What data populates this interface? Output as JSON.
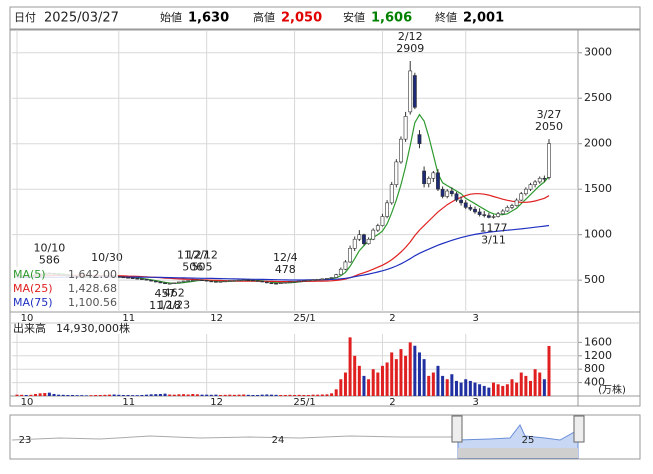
{
  "chart_data": {
    "type": "candlestick",
    "date_label": "日付",
    "date": "2025/03/27",
    "quotes": [
      {
        "label": "始値",
        "value_label": "1,630",
        "color": "#000000"
      },
      {
        "label": "高値",
        "value_label": "2,050",
        "color": "#e00000"
      },
      {
        "label": "安値",
        "value_label": "1,606",
        "color": "#008000"
      },
      {
        "label": "終値",
        "value_label": "2,001",
        "color": "#000000"
      }
    ],
    "categories": [
      "10",
      null,
      null,
      null,
      null,
      null,
      null,
      null,
      null,
      null,
      null,
      null,
      null,
      null,
      null,
      null,
      null,
      null,
      null,
      null,
      null,
      null,
      "11",
      null,
      null,
      null,
      null,
      null,
      null,
      null,
      null,
      null,
      null,
      null,
      null,
      null,
      null,
      null,
      null,
      null,
      null,
      "12",
      null,
      null,
      null,
      null,
      null,
      null,
      null,
      null,
      null,
      null,
      null,
      null,
      null,
      null,
      null,
      null,
      null,
      null,
      "25/1",
      null,
      null,
      null,
      null,
      null,
      null,
      null,
      null,
      null,
      null,
      null,
      null,
      null,
      null,
      null,
      null,
      null,
      null,
      "2",
      null,
      null,
      null,
      null,
      null,
      null,
      null,
      null,
      null,
      null,
      null,
      null,
      null,
      null,
      null,
      null,
      null,
      "3",
      null,
      null,
      null,
      null,
      null,
      null,
      null,
      null,
      null,
      null,
      null,
      null,
      null,
      null,
      null,
      null,
      null,
      null
    ],
    "ohlc": [
      [
        540,
        548,
        535,
        545
      ],
      [
        545,
        553,
        540,
        550
      ],
      [
        550,
        555,
        543,
        548
      ],
      [
        548,
        556,
        544,
        552
      ],
      [
        552,
        565,
        550,
        560
      ],
      [
        560,
        575,
        556,
        570
      ],
      [
        570,
        582,
        565,
        578
      ],
      [
        578,
        586,
        568,
        575
      ],
      [
        575,
        578,
        560,
        565
      ],
      [
        565,
        568,
        555,
        560
      ],
      [
        560,
        563,
        550,
        555
      ],
      [
        555,
        558,
        546,
        550
      ],
      [
        550,
        553,
        541,
        545
      ],
      [
        545,
        548,
        536,
        540
      ],
      [
        540,
        544,
        533,
        538
      ],
      [
        538,
        541,
        530,
        535
      ],
      [
        535,
        543,
        532,
        540
      ],
      [
        540,
        548,
        537,
        545
      ],
      [
        545,
        551,
        541,
        548
      ],
      [
        548,
        553,
        543,
        550
      ],
      [
        550,
        556,
        545,
        552
      ],
      [
        552,
        554,
        536,
        540
      ],
      [
        540,
        542,
        531,
        535
      ],
      [
        535,
        538,
        527,
        530
      ],
      [
        530,
        533,
        522,
        525
      ],
      [
        525,
        528,
        517,
        520
      ],
      [
        520,
        523,
        512,
        515
      ],
      [
        515,
        518,
        506,
        510
      ],
      [
        510,
        512,
        497,
        500
      ],
      [
        500,
        503,
        487,
        490
      ],
      [
        490,
        493,
        477,
        480
      ],
      [
        480,
        483,
        467,
        470
      ],
      [
        470,
        472,
        457,
        462
      ],
      [
        462,
        468,
        458,
        465
      ],
      [
        465,
        473,
        462,
        470
      ],
      [
        470,
        483,
        468,
        480
      ],
      [
        480,
        493,
        477,
        490
      ],
      [
        490,
        498,
        486,
        495
      ],
      [
        495,
        506,
        492,
        500
      ],
      [
        500,
        504,
        496,
        503
      ],
      [
        503,
        505,
        494,
        498
      ],
      [
        498,
        500,
        487,
        490
      ],
      [
        490,
        492,
        482,
        485
      ],
      [
        485,
        487,
        478,
        480
      ],
      [
        480,
        488,
        479,
        485
      ],
      [
        485,
        493,
        483,
        490
      ],
      [
        490,
        497,
        487,
        495
      ],
      [
        495,
        501,
        492,
        498
      ],
      [
        498,
        503,
        495,
        500
      ],
      [
        500,
        505,
        498,
        503
      ],
      [
        503,
        504,
        496,
        500
      ],
      [
        500,
        502,
        492,
        495
      ],
      [
        495,
        497,
        487,
        490
      ],
      [
        490,
        492,
        477,
        480
      ],
      [
        480,
        482,
        467,
        470
      ],
      [
        470,
        472,
        463,
        465
      ],
      [
        465,
        468,
        462,
        463
      ],
      [
        463,
        473,
        464,
        470
      ],
      [
        470,
        478,
        467,
        475
      ],
      [
        475,
        483,
        472,
        480
      ],
      [
        480,
        488,
        478,
        485
      ],
      [
        485,
        493,
        482,
        490
      ],
      [
        490,
        498,
        487,
        495
      ],
      [
        495,
        503,
        491,
        500
      ],
      [
        500,
        508,
        497,
        505
      ],
      [
        505,
        513,
        502,
        510
      ],
      [
        510,
        518,
        506,
        515
      ],
      [
        515,
        524,
        511,
        520
      ],
      [
        520,
        535,
        518,
        530
      ],
      [
        530,
        570,
        528,
        560
      ],
      [
        560,
        640,
        555,
        620
      ],
      [
        620,
        720,
        610,
        700
      ],
      [
        700,
        880,
        690,
        850
      ],
      [
        850,
        980,
        820,
        950
      ],
      [
        950,
        1050,
        930,
        1000
      ],
      [
        1000,
        1010,
        880,
        900
      ],
      [
        900,
        970,
        890,
        950
      ],
      [
        950,
        1070,
        940,
        1050
      ],
      [
        1050,
        1120,
        1030,
        1100
      ],
      [
        1100,
        1230,
        1090,
        1200
      ],
      [
        1200,
        1380,
        1180,
        1350
      ],
      [
        1350,
        1580,
        1330,
        1550
      ],
      [
        1550,
        1830,
        1520,
        1800
      ],
      [
        1800,
        2080,
        1780,
        2050
      ],
      [
        2050,
        2350,
        2020,
        2300
      ],
      [
        2350,
        2909,
        2320,
        2800
      ],
      [
        2750,
        2780,
        2380,
        2400
      ],
      [
        2100,
        2150,
        1950,
        2000
      ],
      [
        1700,
        1750,
        1520,
        1560
      ],
      [
        1560,
        1640,
        1520,
        1620
      ],
      [
        1620,
        1700,
        1580,
        1680
      ],
      [
        1680,
        1720,
        1480,
        1500
      ],
      [
        1500,
        1530,
        1400,
        1420
      ],
      [
        1420,
        1500,
        1400,
        1480
      ],
      [
        1480,
        1520,
        1420,
        1450
      ],
      [
        1450,
        1470,
        1360,
        1380
      ],
      [
        1380,
        1420,
        1320,
        1350
      ],
      [
        1350,
        1380,
        1280,
        1300
      ],
      [
        1300,
        1330,
        1260,
        1280
      ],
      [
        1280,
        1310,
        1230,
        1250
      ],
      [
        1250,
        1290,
        1200,
        1220
      ],
      [
        1220,
        1260,
        1190,
        1210
      ],
      [
        1210,
        1240,
        1180,
        1190
      ],
      [
        1190,
        1220,
        1177,
        1200
      ],
      [
        1200,
        1250,
        1190,
        1230
      ],
      [
        1230,
        1280,
        1220,
        1260
      ],
      [
        1260,
        1320,
        1250,
        1300
      ],
      [
        1300,
        1340,
        1280,
        1320
      ],
      [
        1320,
        1400,
        1310,
        1380
      ],
      [
        1380,
        1470,
        1370,
        1450
      ],
      [
        1450,
        1520,
        1430,
        1500
      ],
      [
        1500,
        1570,
        1480,
        1550
      ],
      [
        1550,
        1600,
        1520,
        1580
      ],
      [
        1580,
        1640,
        1560,
        1620
      ],
      [
        1620,
        1650,
        1580,
        1610
      ],
      [
        1630,
        2050,
        1606,
        2001
      ]
    ],
    "up_color": "#ffffff",
    "down_color": "#1c2a78",
    "wick_color": "#333333",
    "ylim": [
      150,
      3250
    ],
    "yticks": [
      500,
      1000,
      1500,
      2000,
      2500,
      3000
    ],
    "grid": true,
    "series": [
      {
        "name": "MA(5)",
        "color": "#2e9a2e",
        "value_label": "1,642.00",
        "values": [
          540,
          543,
          545,
          547,
          551,
          556,
          562,
          568,
          572,
          573,
          569,
          561,
          555,
          550,
          545,
          540,
          539,
          540,
          542,
          546,
          549,
          547,
          545,
          541,
          536,
          530,
          525,
          520,
          512,
          503,
          495,
          485,
          476,
          469,
          465,
          468,
          473,
          480,
          486,
          494,
          499,
          497,
          494,
          491,
          487,
          486,
          487,
          490,
          494,
          497,
          499,
          499,
          497,
          493,
          487,
          480,
          473,
          471,
          471,
          471,
          475,
          481,
          486,
          491,
          495,
          500,
          505,
          510,
          516,
          527,
          549,
          586,
          652,
          736,
          824,
          880,
          930,
          970,
          1000,
          1040,
          1120,
          1240,
          1380,
          1550,
          1750,
          1980,
          2230,
          2320,
          2250,
          2080,
          1880,
          1670,
          1570,
          1540,
          1510,
          1480,
          1450,
          1400,
          1370,
          1340,
          1310,
          1280,
          1250,
          1230,
          1220,
          1220,
          1230,
          1260,
          1290,
          1340,
          1390,
          1440,
          1490,
          1540,
          1580,
          1642
        ]
      },
      {
        "name": "MA(25)",
        "color": "#e02020",
        "value_label": "1,428.68",
        "values": [
          540,
          541,
          542,
          543,
          544,
          546,
          548,
          550,
          551,
          552,
          553,
          553,
          553,
          553,
          552,
          552,
          551,
          551,
          551,
          551,
          551,
          550,
          549,
          547,
          545,
          543,
          541,
          539,
          536,
          533,
          530,
          527,
          523,
          520,
          517,
          514,
          512,
          510,
          508,
          506,
          504,
          502,
          500,
          498,
          496,
          494,
          492,
          491,
          490,
          489,
          489,
          489,
          489,
          488,
          487,
          486,
          485,
          484,
          484,
          484,
          484,
          485,
          486,
          487,
          488,
          489,
          490,
          491,
          493,
          497,
          503,
          512,
          527,
          545,
          565,
          582,
          600,
          620,
          642,
          665,
          692,
          725,
          765,
          810,
          860,
          920,
          990,
          1050,
          1100,
          1150,
          1200,
          1250,
          1290,
          1330,
          1360,
          1390,
          1410,
          1430,
          1445,
          1450,
          1450,
          1445,
          1435,
          1420,
          1405,
          1390,
          1378,
          1368,
          1360,
          1356,
          1356,
          1360,
          1370,
          1385,
          1400,
          1428.68
        ]
      },
      {
        "name": "MA(75)",
        "color": "#2030c0",
        "value_label": "1,100.56",
        "values": [
          528,
          528,
          529,
          529,
          530,
          530,
          531,
          531,
          532,
          532,
          533,
          533,
          533,
          534,
          534,
          534,
          535,
          535,
          535,
          535,
          535,
          535,
          535,
          535,
          534,
          534,
          534,
          533,
          533,
          532,
          531,
          530,
          529,
          528,
          527,
          526,
          525,
          524,
          523,
          522,
          521,
          520,
          519,
          518,
          517,
          516,
          515,
          514,
          513,
          512,
          511,
          510,
          509,
          508,
          507,
          506,
          505,
          504,
          503,
          502,
          502,
          502,
          502,
          503,
          503,
          504,
          505,
          506,
          508,
          511,
          515,
          520,
          528,
          538,
          548,
          557,
          567,
          578,
          590,
          603,
          618,
          636,
          656,
          680,
          706,
          736,
          768,
          795,
          818,
          840,
          862,
          884,
          903,
          921,
          938,
          954,
          968,
          981,
          993,
          1003,
          1012,
          1020,
          1027,
          1033,
          1039,
          1044,
          1049,
          1054,
          1059,
          1064,
          1070,
          1076,
          1082,
          1088,
          1094,
          1100.56
        ]
      }
    ],
    "annotations": [
      {
        "date": "10/10",
        "value": 586
      },
      {
        "date": "10/30"
      },
      {
        "date": "11/18",
        "value": 457
      },
      {
        "date": "11/27",
        "value": 506
      },
      {
        "date": "12/4",
        "value": 478
      },
      {
        "date": "12/12",
        "value": 505
      },
      {
        "date": "12/23",
        "value": 462
      },
      {
        "date": "2/12",
        "value": 2909
      },
      {
        "date": "3/11",
        "value": 1177
      },
      {
        "date": "3/27",
        "value": 2050
      }
    ],
    "volume": {
      "title": "出来高",
      "last_label": "14,930,000株",
      "unit": "(万株)",
      "up_color": "#e02020",
      "down_color": "#2030a0",
      "ylim": [
        0,
        1850
      ],
      "yticks": [
        400,
        800,
        1200,
        1600
      ],
      "values": [
        40,
        35,
        30,
        35,
        60,
        80,
        90,
        100,
        60,
        40,
        35,
        30,
        30,
        25,
        25,
        20,
        25,
        30,
        30,
        35,
        40,
        45,
        35,
        30,
        30,
        25,
        25,
        30,
        40,
        50,
        55,
        60,
        70,
        45,
        40,
        50,
        55,
        45,
        60,
        50,
        40,
        40,
        35,
        40,
        30,
        35,
        40,
        35,
        40,
        45,
        35,
        30,
        30,
        40,
        45,
        40,
        35,
        30,
        30,
        35,
        30,
        35,
        30,
        30,
        40,
        40,
        45,
        50,
        80,
        200,
        500,
        700,
        1750,
        1200,
        900,
        600,
        500,
        800,
        700,
        900,
        1000,
        1300,
        1100,
        1400,
        1200,
        1600,
        1500,
        1300,
        1100,
        600,
        700,
        900,
        600,
        500,
        650,
        450,
        400,
        500,
        450,
        400,
        350,
        300,
        250,
        400,
        350,
        300,
        350,
        500,
        400,
        700,
        600,
        450,
        800,
        700,
        500,
        1493
      ]
    },
    "navigator": {
      "labels": [
        "23",
        "24",
        "25"
      ]
    }
  }
}
